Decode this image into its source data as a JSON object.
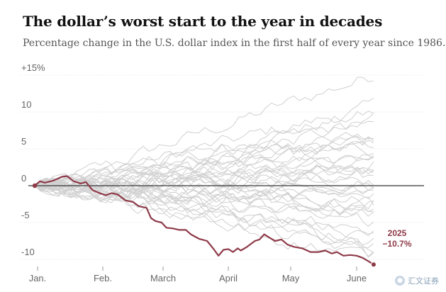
{
  "title": "The dollar’s worst start to the year in decades",
  "subtitle": "Percentage change in the U.S. dollar index in the first half of every year since 1986.",
  "watermark": "汇文证券",
  "chart_data": {
    "type": "line",
    "title": "The dollar’s worst start to the year in decades",
    "subtitle": "Percentage change in the U.S. dollar index in the first half of every year since 1986.",
    "xlabel": "",
    "ylabel": "",
    "x_ticks": [
      "Jan.",
      "Feb.",
      "March",
      "April",
      "May",
      "June"
    ],
    "y_ticks": [
      "+15%",
      "10",
      "5",
      "0",
      "-5",
      "-10"
    ],
    "y_tick_values": [
      15,
      10,
      5,
      0,
      -5,
      -10
    ],
    "ylim": [
      -10.7,
      16
    ],
    "grid": true,
    "colors": {
      "highlight": "#8e3a48",
      "background_lines": "#d0d0d0",
      "zero_line": "#333333"
    },
    "highlight_series": {
      "name": "2025",
      "label_value": "−10.7%",
      "points": [
        [
          0.0,
          0.0
        ],
        [
          0.15,
          0.6
        ],
        [
          0.3,
          0.4
        ],
        [
          0.55,
          0.7
        ],
        [
          0.8,
          1.2
        ],
        [
          0.95,
          1.3
        ],
        [
          1.15,
          0.6
        ],
        [
          1.35,
          0.3
        ],
        [
          1.5,
          0.5
        ],
        [
          1.7,
          -0.6
        ],
        [
          1.9,
          -1.0
        ],
        [
          2.1,
          -1.3
        ],
        [
          2.3,
          -1.0
        ],
        [
          2.5,
          -1.2
        ],
        [
          2.75,
          -2.0
        ],
        [
          3.0,
          -2.2
        ],
        [
          3.2,
          -2.8
        ],
        [
          3.45,
          -3.0
        ],
        [
          3.6,
          -4.4
        ],
        [
          3.75,
          -4.8
        ],
        [
          3.95,
          -5.0
        ],
        [
          4.1,
          -5.7
        ],
        [
          4.3,
          -5.8
        ],
        [
          4.5,
          -6.0
        ],
        [
          4.7,
          -6.0
        ],
        [
          4.85,
          -6.6
        ],
        [
          5.1,
          -7.2
        ],
        [
          5.35,
          -7.5
        ],
        [
          5.55,
          -8.6
        ],
        [
          5.7,
          -9.5
        ],
        [
          5.85,
          -8.7
        ],
        [
          6.0,
          -8.6
        ],
        [
          6.15,
          -9.0
        ],
        [
          6.3,
          -8.5
        ],
        [
          6.4,
          -8.8
        ],
        [
          6.6,
          -8.3
        ],
        [
          6.85,
          -7.5
        ],
        [
          7.0,
          -7.3
        ],
        [
          7.15,
          -6.6
        ],
        [
          7.3,
          -7.0
        ],
        [
          7.5,
          -7.5
        ],
        [
          7.7,
          -7.3
        ],
        [
          7.9,
          -8.0
        ],
        [
          8.1,
          -8.3
        ],
        [
          8.35,
          -8.5
        ],
        [
          8.6,
          -9.0
        ],
        [
          8.85,
          -9.0
        ],
        [
          9.05,
          -8.8
        ],
        [
          9.25,
          -9.2
        ],
        [
          9.4,
          -9.0
        ],
        [
          9.6,
          -9.5
        ],
        [
          9.8,
          -9.4
        ],
        [
          10.0,
          -9.5
        ],
        [
          10.2,
          -9.8
        ],
        [
          10.4,
          -10.3
        ],
        [
          10.55,
          -10.7
        ]
      ]
    },
    "background_series_endpoints": [
      15.5,
      11.0,
      10.2,
      9.0,
      8.5,
      7.5,
      7.0,
      6.5,
      6.0,
      5.5,
      5.0,
      4.5,
      4.0,
      3.5,
      3.0,
      2.5,
      2.0,
      1.5,
      1.0,
      0.5,
      0.0,
      -0.5,
      -1.0,
      -1.5,
      -2.0,
      -2.5,
      -3.0,
      -3.5,
      -4.0,
      -5.0,
      -6.0,
      -6.5,
      -7.5,
      -8.0,
      -8.5,
      -9.5,
      -10.2,
      -3.8,
      1.8
    ]
  }
}
